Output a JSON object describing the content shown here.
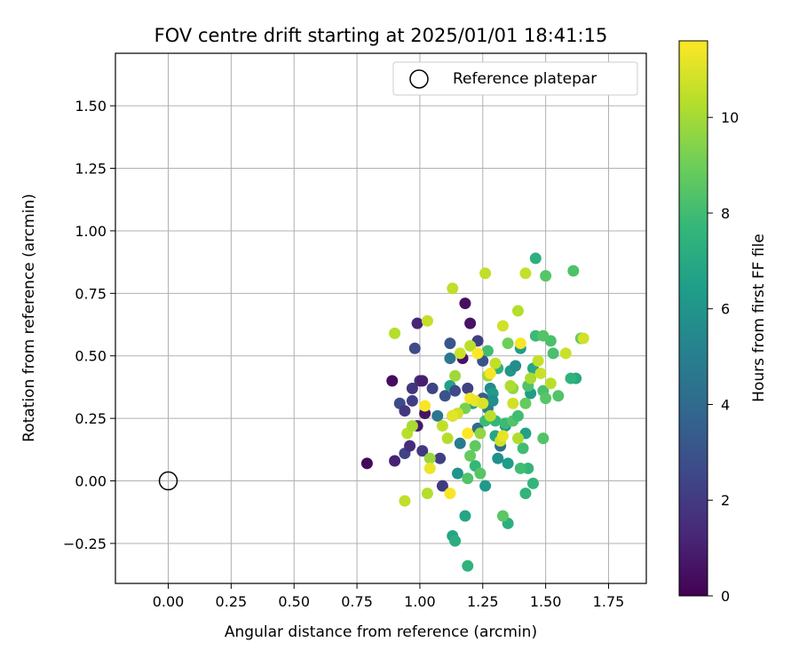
{
  "chart_data": {
    "type": "scatter",
    "title": "FOV centre drift starting at 2025/01/01 18:41:15",
    "xlabel": "Angular distance from reference (arcmin)",
    "ylabel": "Rotation from reference (arcmin)",
    "xlim": [
      -0.21,
      1.9
    ],
    "ylim": [
      -0.41,
      1.71
    ],
    "xticks": [
      "0.00",
      "0.25",
      "0.50",
      "0.75",
      "1.00",
      "1.25",
      "1.50",
      "1.75"
    ],
    "xtick_values": [
      0,
      0.25,
      0.5,
      0.75,
      1.0,
      1.25,
      1.5,
      1.75
    ],
    "yticks": [
      "−0.25",
      "0.00",
      "0.25",
      "0.50",
      "0.75",
      "1.00",
      "1.25",
      "1.50"
    ],
    "ytick_values": [
      -0.25,
      0,
      0.25,
      0.5,
      0.75,
      1.0,
      1.25,
      1.5
    ],
    "grid": true,
    "legend": {
      "placement": "top-right",
      "label": "Reference platepar"
    },
    "reference_point": {
      "x": 0.0,
      "y": 0.0
    },
    "colorbar": {
      "label": "Hours from first FF file",
      "colormap": "viridis",
      "range": [
        0,
        11.6
      ],
      "ticks": [
        "0",
        "2",
        "4",
        "6",
        "8",
        "10"
      ],
      "tick_values": [
        0,
        2,
        4,
        6,
        8,
        10
      ],
      "colors": [
        "#440154",
        "#482878",
        "#3e4989",
        "#31688e",
        "#26828e",
        "#1f9e89",
        "#35b779",
        "#6ece58",
        "#b5de2b",
        "#fde725"
      ]
    },
    "points": [
      {
        "x": 0.79,
        "y": 0.07,
        "c": 0.3
      },
      {
        "x": 0.89,
        "y": 0.4,
        "c": 0.4
      },
      {
        "x": 0.9,
        "y": 0.08,
        "c": 1.1
      },
      {
        "x": 0.92,
        "y": 0.31,
        "c": 2.6
      },
      {
        "x": 0.94,
        "y": 0.28,
        "c": 1.9
      },
      {
        "x": 0.94,
        "y": 0.11,
        "c": 2.4
      },
      {
        "x": 0.96,
        "y": 0.14,
        "c": 1.5
      },
      {
        "x": 0.97,
        "y": 0.37,
        "c": 1.8
      },
      {
        "x": 0.97,
        "y": 0.32,
        "c": 2.2
      },
      {
        "x": 0.98,
        "y": 0.53,
        "c": 2.6
      },
      {
        "x": 0.99,
        "y": 0.63,
        "c": 1.2
      },
      {
        "x": 1.0,
        "y": 0.4,
        "c": 1.5
      },
      {
        "x": 0.99,
        "y": 0.22,
        "c": 0.8
      },
      {
        "x": 1.01,
        "y": 0.4,
        "c": 1.0
      },
      {
        "x": 1.01,
        "y": 0.12,
        "c": 2.0
      },
      {
        "x": 1.02,
        "y": 0.27,
        "c": 0.6
      },
      {
        "x": 1.05,
        "y": 0.37,
        "c": 2.4
      },
      {
        "x": 1.07,
        "y": 0.26,
        "c": 4.6
      },
      {
        "x": 1.08,
        "y": 0.09,
        "c": 2.2
      },
      {
        "x": 1.09,
        "y": -0.02,
        "c": 2.0
      },
      {
        "x": 1.1,
        "y": 0.34,
        "c": 3.0
      },
      {
        "x": 1.12,
        "y": 0.55,
        "c": 3.1
      },
      {
        "x": 1.12,
        "y": 0.49,
        "c": 4.6
      },
      {
        "x": 1.12,
        "y": 0.38,
        "c": 6.6
      },
      {
        "x": 1.13,
        "y": 0.26,
        "c": 4.0
      },
      {
        "x": 1.14,
        "y": 0.36,
        "c": 2.6
      },
      {
        "x": 1.15,
        "y": 0.03,
        "c": 6.0
      },
      {
        "x": 1.16,
        "y": 0.15,
        "c": 4.8
      },
      {
        "x": 1.17,
        "y": 0.49,
        "c": 0.6
      },
      {
        "x": 1.18,
        "y": 0.71,
        "c": 0.5
      },
      {
        "x": 1.19,
        "y": 0.37,
        "c": 2.3
      },
      {
        "x": 1.2,
        "y": 0.63,
        "c": 0.6
      },
      {
        "x": 1.21,
        "y": 0.31,
        "c": 6.6
      },
      {
        "x": 1.23,
        "y": 0.56,
        "c": 2.2
      },
      {
        "x": 1.23,
        "y": 0.21,
        "c": 4.1
      },
      {
        "x": 1.25,
        "y": 0.48,
        "c": 3.0
      },
      {
        "x": 1.25,
        "y": 0.33,
        "c": 3.4
      },
      {
        "x": 1.26,
        "y": -0.02,
        "c": 6.2
      },
      {
        "x": 1.27,
        "y": 0.29,
        "c": 5.0
      },
      {
        "x": 1.28,
        "y": 0.37,
        "c": 5.5
      },
      {
        "x": 1.29,
        "y": 0.35,
        "c": 6.3
      },
      {
        "x": 1.29,
        "y": 0.32,
        "c": 5.6
      },
      {
        "x": 1.3,
        "y": 0.18,
        "c": 6.8
      },
      {
        "x": 1.31,
        "y": 0.09,
        "c": 5.8
      },
      {
        "x": 1.32,
        "y": 0.14,
        "c": 4.1
      },
      {
        "x": 1.34,
        "y": 0.22,
        "c": 6.0
      },
      {
        "x": 1.35,
        "y": 0.07,
        "c": 6.4
      },
      {
        "x": 1.36,
        "y": 0.44,
        "c": 6.1
      },
      {
        "x": 1.38,
        "y": 0.46,
        "c": 5.6
      },
      {
        "x": 1.4,
        "y": 0.53,
        "c": 6.4
      },
      {
        "x": 1.42,
        "y": 0.19,
        "c": 6.6
      },
      {
        "x": 1.43,
        "y": 0.05,
        "c": 7.6
      },
      {
        "x": 1.44,
        "y": 0.35,
        "c": 6.4
      },
      {
        "x": 1.45,
        "y": 0.45,
        "c": 6.9
      },
      {
        "x": 1.46,
        "y": 0.89,
        "c": 7.3
      },
      {
        "x": 1.62,
        "y": 0.41,
        "c": 7.0
      },
      {
        "x": 1.13,
        "y": -0.22,
        "c": 6.8
      },
      {
        "x": 1.14,
        "y": -0.24,
        "c": 7.2
      },
      {
        "x": 1.18,
        "y": -0.14,
        "c": 6.8
      },
      {
        "x": 1.19,
        "y": -0.34,
        "c": 7.5
      },
      {
        "x": 1.35,
        "y": -0.17,
        "c": 7.3
      },
      {
        "x": 1.33,
        "y": -0.14,
        "c": 8.6
      },
      {
        "x": 1.42,
        "y": -0.05,
        "c": 7.6
      },
      {
        "x": 1.45,
        "y": -0.01,
        "c": 7.6
      },
      {
        "x": 1.19,
        "y": 0.01,
        "c": 8.4
      },
      {
        "x": 1.22,
        "y": 0.06,
        "c": 7.7
      },
      {
        "x": 1.26,
        "y": 0.24,
        "c": 7.9
      },
      {
        "x": 1.27,
        "y": 0.52,
        "c": 8.0
      },
      {
        "x": 1.3,
        "y": 0.24,
        "c": 7.6
      },
      {
        "x": 1.31,
        "y": 0.45,
        "c": 7.4
      },
      {
        "x": 1.34,
        "y": 0.23,
        "c": 7.9
      },
      {
        "x": 1.37,
        "y": 0.24,
        "c": 8.4
      },
      {
        "x": 1.39,
        "y": 0.26,
        "c": 8.0
      },
      {
        "x": 1.4,
        "y": 0.05,
        "c": 8.0
      },
      {
        "x": 1.41,
        "y": 0.13,
        "c": 8.0
      },
      {
        "x": 1.42,
        "y": 0.31,
        "c": 8.8
      },
      {
        "x": 1.43,
        "y": 0.38,
        "c": 8.3
      },
      {
        "x": 1.46,
        "y": 0.58,
        "c": 7.9
      },
      {
        "x": 1.49,
        "y": 0.36,
        "c": 8.2
      },
      {
        "x": 1.49,
        "y": 0.17,
        "c": 8.4
      },
      {
        "x": 1.5,
        "y": 0.33,
        "c": 8.5
      },
      {
        "x": 1.5,
        "y": 0.82,
        "c": 8.5
      },
      {
        "x": 1.52,
        "y": 0.56,
        "c": 8.2
      },
      {
        "x": 1.53,
        "y": 0.51,
        "c": 8.2
      },
      {
        "x": 1.55,
        "y": 0.34,
        "c": 8.4
      },
      {
        "x": 1.6,
        "y": 0.41,
        "c": 7.5
      },
      {
        "x": 1.61,
        "y": 0.84,
        "c": 8.3
      },
      {
        "x": 1.64,
        "y": 0.57,
        "c": 8.8
      },
      {
        "x": 1.49,
        "y": 0.58,
        "c": 8.4
      },
      {
        "x": 1.22,
        "y": 0.14,
        "c": 8.7
      },
      {
        "x": 1.24,
        "y": 0.03,
        "c": 8.5
      },
      {
        "x": 1.2,
        "y": 0.1,
        "c": 8.8
      },
      {
        "x": 1.35,
        "y": 0.55,
        "c": 9.0
      },
      {
        "x": 1.18,
        "y": 0.29,
        "c": 9.2
      },
      {
        "x": 1.37,
        "y": 0.37,
        "c": 9.6
      },
      {
        "x": 0.9,
        "y": 0.59,
        "c": 10.3
      },
      {
        "x": 0.94,
        "y": -0.08,
        "c": 10.5
      },
      {
        "x": 0.95,
        "y": 0.19,
        "c": 10.4
      },
      {
        "x": 0.97,
        "y": 0.22,
        "c": 10.1
      },
      {
        "x": 1.03,
        "y": -0.05,
        "c": 10.3
      },
      {
        "x": 1.03,
        "y": 0.64,
        "c": 10.6
      },
      {
        "x": 1.04,
        "y": 0.09,
        "c": 9.8
      },
      {
        "x": 1.09,
        "y": 0.22,
        "c": 10.5
      },
      {
        "x": 1.11,
        "y": 0.17,
        "c": 10.3
      },
      {
        "x": 1.13,
        "y": 0.77,
        "c": 10.5
      },
      {
        "x": 1.14,
        "y": 0.42,
        "c": 9.9
      },
      {
        "x": 1.15,
        "y": 0.27,
        "c": 10.8
      },
      {
        "x": 1.16,
        "y": 0.51,
        "c": 10.7
      },
      {
        "x": 1.2,
        "y": 0.54,
        "c": 10.4
      },
      {
        "x": 1.24,
        "y": 0.19,
        "c": 9.7
      },
      {
        "x": 1.26,
        "y": 0.83,
        "c": 10.5
      },
      {
        "x": 1.27,
        "y": 0.42,
        "c": 9.9
      },
      {
        "x": 1.28,
        "y": 0.26,
        "c": 10.4
      },
      {
        "x": 1.3,
        "y": 0.47,
        "c": 10.5
      },
      {
        "x": 1.32,
        "y": 0.16,
        "c": 10.8
      },
      {
        "x": 1.33,
        "y": 0.62,
        "c": 10.8
      },
      {
        "x": 1.36,
        "y": 0.38,
        "c": 10.2
      },
      {
        "x": 1.37,
        "y": 0.31,
        "c": 10.8
      },
      {
        "x": 1.39,
        "y": 0.68,
        "c": 10.3
      },
      {
        "x": 1.39,
        "y": 0.17,
        "c": 10.2
      },
      {
        "x": 1.42,
        "y": 0.83,
        "c": 10.6
      },
      {
        "x": 1.44,
        "y": 0.41,
        "c": 10.1
      },
      {
        "x": 1.47,
        "y": 0.48,
        "c": 10.6
      },
      {
        "x": 1.48,
        "y": 0.43,
        "c": 10.7
      },
      {
        "x": 1.52,
        "y": 0.39,
        "c": 10.4
      },
      {
        "x": 1.58,
        "y": 0.51,
        "c": 10.7
      },
      {
        "x": 1.65,
        "y": 0.57,
        "c": 10.8
      },
      {
        "x": 1.02,
        "y": 0.3,
        "c": 11.5
      },
      {
        "x": 1.04,
        "y": 0.05,
        "c": 11.3
      },
      {
        "x": 1.12,
        "y": -0.05,
        "c": 11.5
      },
      {
        "x": 1.13,
        "y": 0.26,
        "c": 11.1
      },
      {
        "x": 1.19,
        "y": 0.19,
        "c": 11.6
      },
      {
        "x": 1.2,
        "y": 0.33,
        "c": 11.4
      },
      {
        "x": 1.22,
        "y": 0.32,
        "c": 11.3
      },
      {
        "x": 1.23,
        "y": 0.51,
        "c": 11.6
      },
      {
        "x": 1.25,
        "y": 0.31,
        "c": 11.0
      },
      {
        "x": 1.28,
        "y": 0.43,
        "c": 11.5
      },
      {
        "x": 1.4,
        "y": 0.55,
        "c": 11.5
      },
      {
        "x": 1.33,
        "y": 0.18,
        "c": 11.2
      }
    ]
  }
}
